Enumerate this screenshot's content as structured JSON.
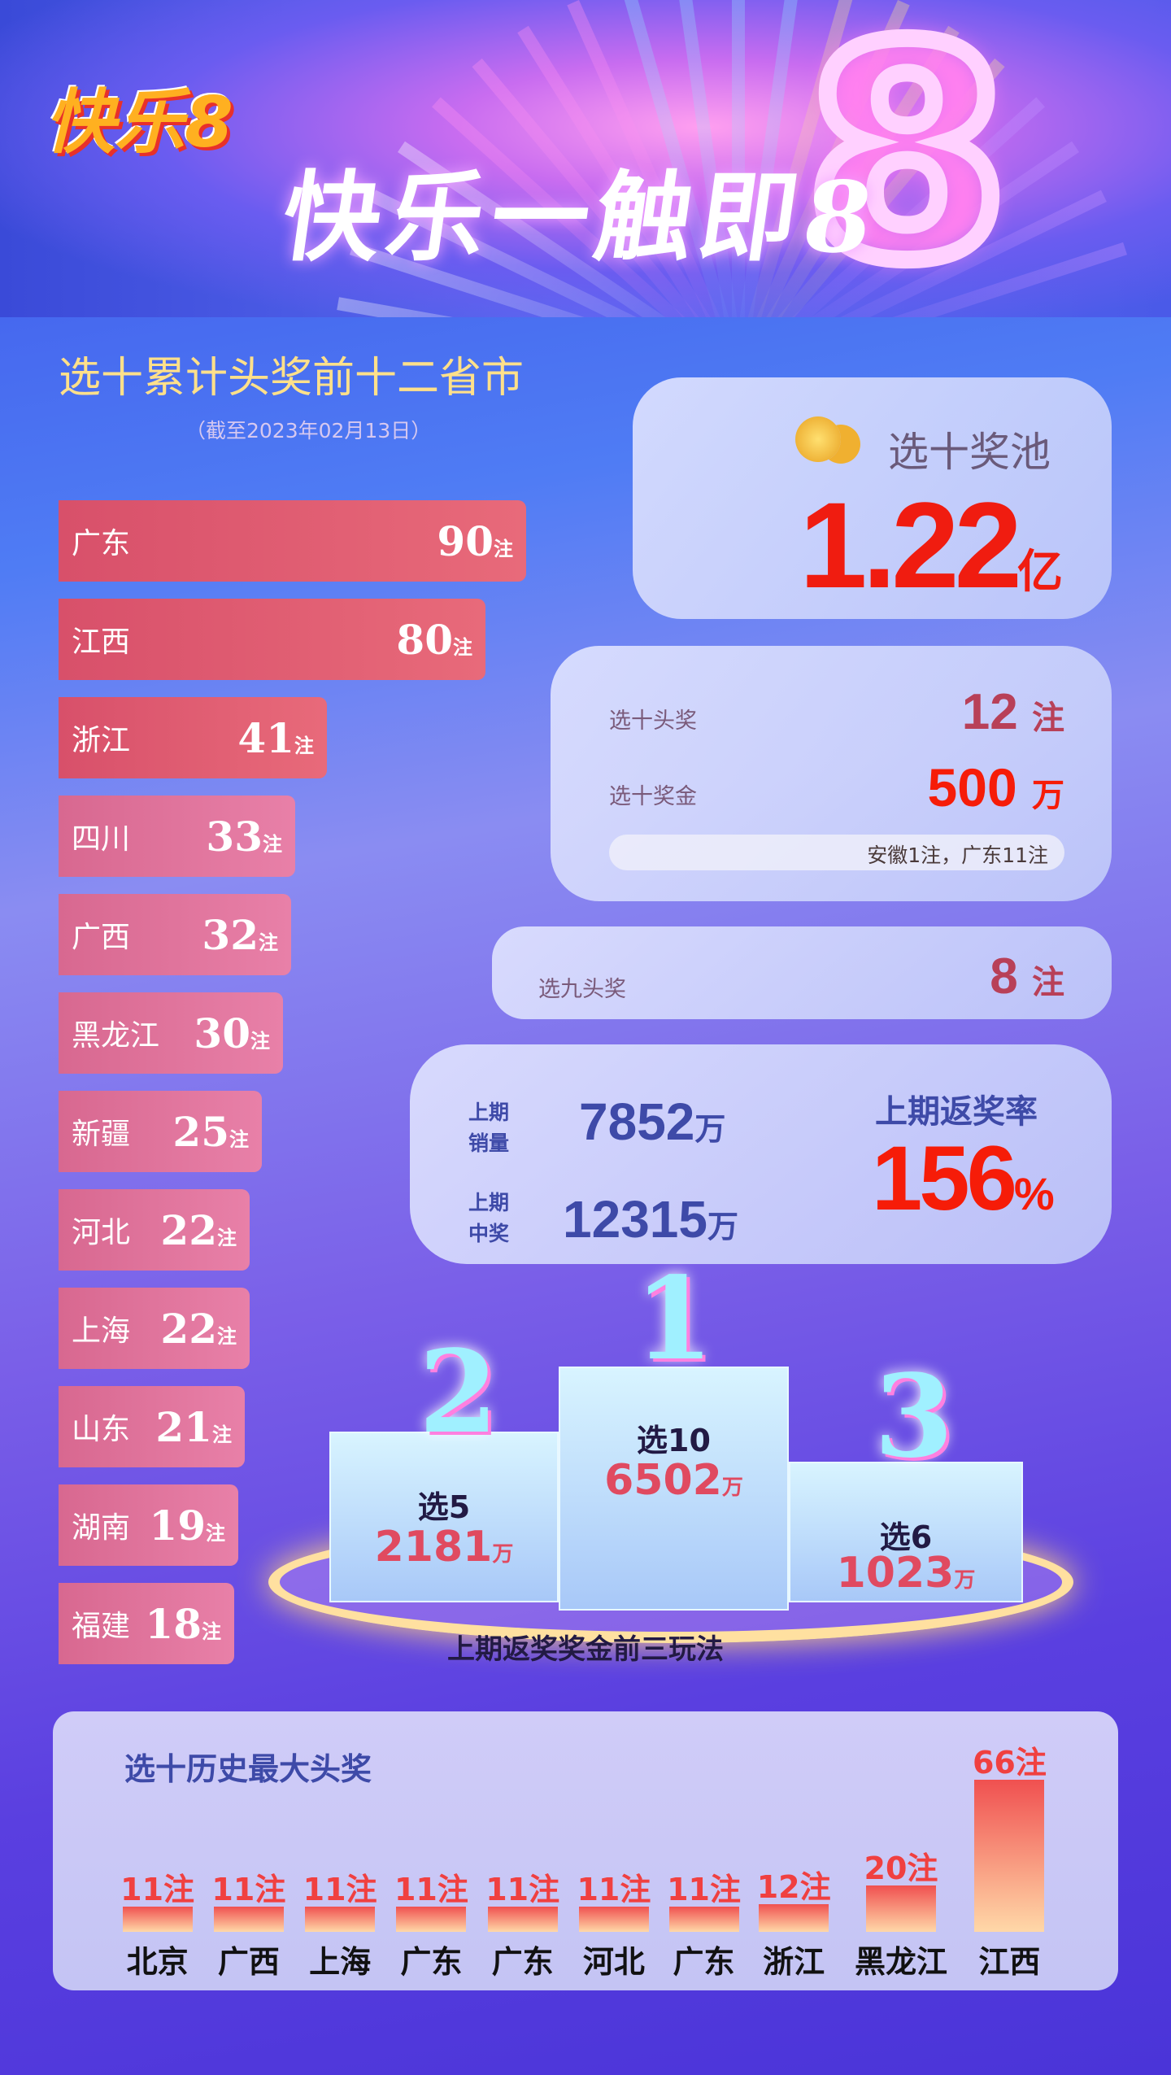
{
  "header": {
    "logo_text": "快乐8",
    "slogan": "快乐一触即8",
    "big_digit": "8"
  },
  "ranking": {
    "title": "选十累计头奖前十二省市",
    "date_note": "（截至2023年02月13日）",
    "unit": "注",
    "items": [
      {
        "name": "广东",
        "count": 90
      },
      {
        "name": "江西",
        "count": 80
      },
      {
        "name": "浙江",
        "count": 41
      },
      {
        "name": "四川",
        "count": 33
      },
      {
        "name": "广西",
        "count": 32
      },
      {
        "name": "黑龙江",
        "count": 30
      },
      {
        "name": "新疆",
        "count": 25
      },
      {
        "name": "河北",
        "count": 22
      },
      {
        "name": "上海",
        "count": 22
      },
      {
        "name": "山东",
        "count": 21
      },
      {
        "name": "湖南",
        "count": 19
      },
      {
        "name": "福建",
        "count": 18
      }
    ]
  },
  "pool": {
    "label": "选十奖池",
    "value": "1.22",
    "unit": "亿",
    "icon": "coins-icon"
  },
  "x10": {
    "jackpot_label": "选十头奖",
    "jackpot_value": "12",
    "jackpot_unit": "注",
    "prize_label": "选十奖金",
    "prize_value": "500",
    "prize_unit": "万",
    "note": "安徽1注，广东11注"
  },
  "x9": {
    "label": "选九头奖",
    "value": "8",
    "unit": "注"
  },
  "last": {
    "sales_label": "上期\n销量",
    "sales_value": "7852",
    "sales_unit": "万",
    "win_label": "上期\n中奖",
    "win_value": "12315",
    "win_unit": "万",
    "rate_label": "上期返奖率",
    "rate_value": "156",
    "rate_unit": "%"
  },
  "podium": {
    "caption": "上期返奖奖金前三玩法",
    "items": [
      {
        "rank": "1",
        "name": "选10",
        "value": "6502",
        "unit": "万"
      },
      {
        "rank": "2",
        "name": "选5",
        "value": "2181",
        "unit": "万"
      },
      {
        "rank": "3",
        "name": "选6",
        "value": "1023",
        "unit": "万"
      }
    ]
  },
  "history": {
    "title": "选十历史最大头奖",
    "unit": "注",
    "colors": {
      "bar_top": "#f05050",
      "bar_bottom": "#ffd8a8"
    },
    "items": [
      {
        "name": "北京",
        "count": 11
      },
      {
        "name": "广西",
        "count": 11
      },
      {
        "name": "上海",
        "count": 11
      },
      {
        "name": "广东",
        "count": 11
      },
      {
        "name": "广东",
        "count": 11
      },
      {
        "name": "河北",
        "count": 11
      },
      {
        "name": "广东",
        "count": 11
      },
      {
        "name": "浙江",
        "count": 12
      },
      {
        "name": "黑龙江",
        "count": 20
      },
      {
        "name": "江西",
        "count": 66
      }
    ]
  }
}
